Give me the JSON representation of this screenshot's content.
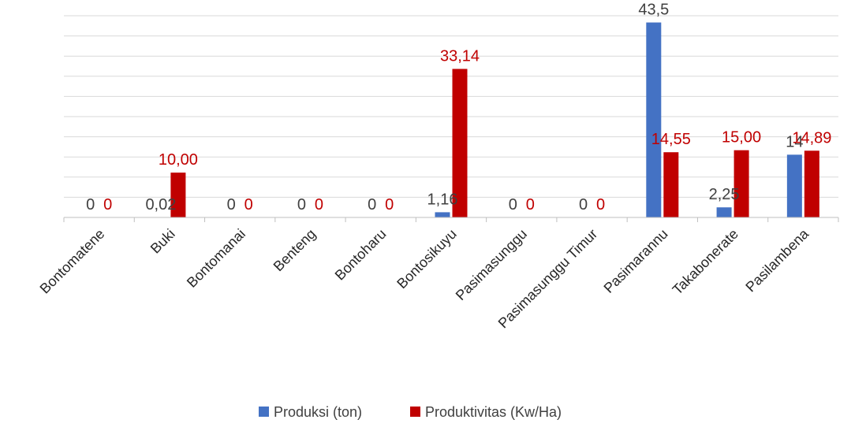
{
  "chart_data": {
    "type": "bar",
    "categories": [
      "Bontomatene",
      "Buki",
      "Bontomanai",
      "Benteng",
      "Bontoharu",
      "Bontosikuyu",
      "Pasimasunggu",
      "Pasimasunggu Timur",
      "Pasimarannu",
      "Takabonerate",
      "Pasilambena"
    ],
    "series": [
      {
        "name": "Produksi (ton)",
        "color": "#4472C4",
        "label_color": "#404040",
        "values": [
          0,
          0.02,
          0,
          0,
          0,
          1.16,
          0,
          0,
          43.5,
          2.25,
          14
        ],
        "labels": [
          "0",
          "0,02",
          "0",
          "0",
          "0",
          "1,16",
          "0",
          "0",
          "43,5",
          "2,25",
          "14"
        ]
      },
      {
        "name": "Produktivitas (Kw/Ha)",
        "color": "#C00000",
        "label_color": "#C00000",
        "values": [
          0,
          10.0,
          0,
          0,
          0,
          33.14,
          0,
          0,
          14.55,
          15.0,
          14.89
        ],
        "labels": [
          "0",
          "10,00",
          "0",
          "0",
          "0",
          "33,14",
          "0",
          "0",
          "14,55",
          "15,00",
          "14,89"
        ]
      }
    ],
    "ylim": [
      0,
      45
    ],
    "grid": true,
    "legend": "bottom"
  }
}
